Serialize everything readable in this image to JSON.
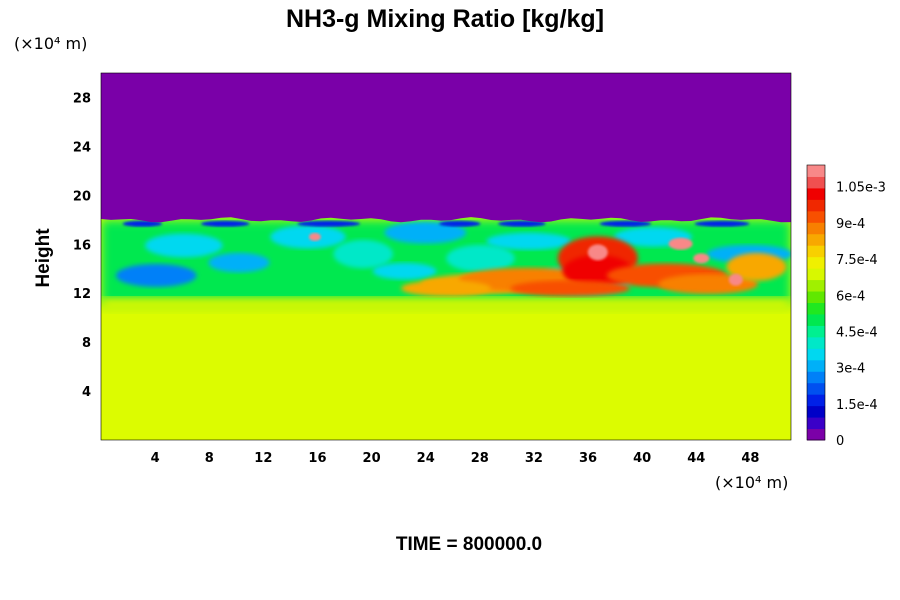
{
  "chart_data": {
    "type": "heatmap",
    "title": "NH3-g Mixing Ratio [kg/kg]",
    "ylabel": "Height",
    "xlabel": "",
    "x_unit": "(×10⁴ m)",
    "y_unit": "(×10⁴ m)",
    "xlim": [
      0,
      51
    ],
    "ylim": [
      0,
      30
    ],
    "x_ticks": [
      "4",
      "8",
      "12",
      "16",
      "20",
      "24",
      "28",
      "32",
      "36",
      "40",
      "44",
      "48"
    ],
    "y_ticks": [
      "4",
      "8",
      "12",
      "16",
      "20",
      "24",
      "28"
    ],
    "colorbar": {
      "range": [
        0,
        0.00114
      ],
      "ticks": [
        "0",
        "1.5e-4",
        "3e-4",
        "4.5e-4",
        "6e-4",
        "7.5e-4",
        "9e-4",
        "1.05e-3"
      ],
      "colors": [
        "#7b00a8",
        "#3a00c8",
        "#0000c8",
        "#0020e8",
        "#0050f0",
        "#0080f8",
        "#00b0f8",
        "#00d8f0",
        "#00e8c8",
        "#00f090",
        "#00e850",
        "#20e820",
        "#60e800",
        "#a0f000",
        "#d8f800",
        "#f0f000",
        "#f8d000",
        "#f8a800",
        "#f88000",
        "#f85000",
        "#f02800",
        "#f00000",
        "#f05050",
        "#f88888"
      ]
    },
    "field": {
      "upper_layer": {
        "height_range": [
          18,
          30
        ],
        "value": 0
      },
      "lower_layer": {
        "height_range": [
          0,
          11
        ],
        "value": 0.00079
      },
      "mixing_layer": {
        "height_range": [
          11,
          18
        ],
        "value_range": [
          0,
          0.00114
        ]
      }
    },
    "footer": "TIME = 800000.0"
  },
  "colors": {
    "upper": "#7a00a8",
    "lower": "#dcfc00"
  }
}
